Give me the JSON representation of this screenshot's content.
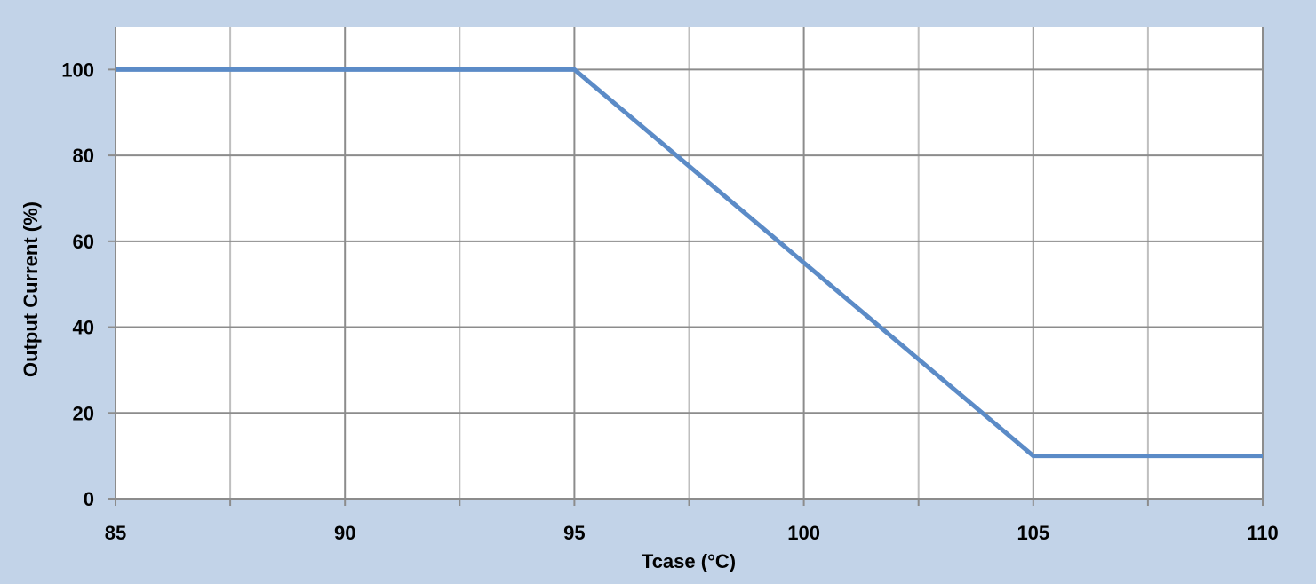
{
  "chart_data": {
    "type": "line",
    "title": "",
    "xlabel": "Tcase (°C)",
    "ylabel": "Output Current (%)",
    "xlim": [
      85,
      110
    ],
    "ylim": [
      0,
      110
    ],
    "x_ticks": [
      85,
      90,
      95,
      100,
      105,
      110
    ],
    "x_minor_ticks": [
      87.5,
      92.5,
      97.5,
      102.5,
      107.5
    ],
    "y_ticks": [
      0,
      20,
      40,
      60,
      80,
      100
    ],
    "grid": true,
    "legend": "none",
    "series": [
      {
        "x": [
          85,
          95,
          105,
          110
        ],
        "y": [
          100,
          100,
          10,
          10
        ],
        "color": "#5b8bc7"
      }
    ],
    "colors": {
      "background": "#c2d3e8",
      "plot_area": "#ffffff",
      "grid_major": "#8c8c8c",
      "grid_minor": "#bfbfbf",
      "axis": "#8c8c8c"
    }
  }
}
